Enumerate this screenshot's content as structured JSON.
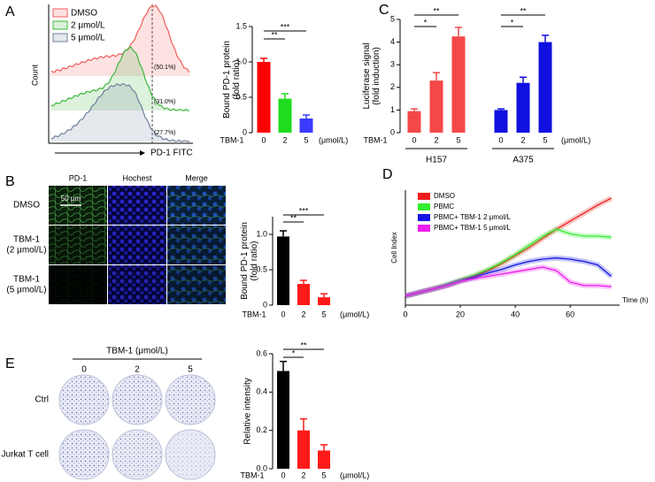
{
  "figure": {
    "panel_labels": [
      "A",
      "B",
      "C",
      "D",
      "E"
    ],
    "microscopy": {
      "columns": [
        "PD-1",
        "Hochest",
        "Merge"
      ],
      "rows": [
        [
          "DMSO"
        ],
        [
          "TBM-1",
          "(2 μmol/L)"
        ],
        [
          "TBM-1",
          "(5 μmol/L)"
        ]
      ],
      "scale_bar": "50 μm"
    },
    "plates": {
      "title": "TBM-1 (μmol/L)",
      "columns": [
        "0",
        "2",
        "5"
      ],
      "rows": [
        "Ctrl",
        "Jurkat T cell"
      ]
    }
  },
  "chart_data": [
    {
      "type": "flow",
      "ylabel": "Count",
      "xlabel": "PD-1  FITC",
      "series": [
        {
          "name": "DMSO",
          "color": "#f25c5c",
          "values": [
            50.1
          ],
          "value_labels": [
            "(50.1%)"
          ]
        },
        {
          "name": "2 μmol/L",
          "color": "#3cb83c",
          "values": [
            31.0
          ],
          "value_labels": [
            "(31.0%)"
          ]
        },
        {
          "name": "5 μmol/L",
          "color": "#6f7f9a",
          "values": [
            27.7
          ],
          "value_labels": [
            "(27.7%)"
          ]
        }
      ]
    },
    {
      "type": "bar",
      "ylabel": [
        "Bound PD-1 protein",
        "(fold ratio)"
      ],
      "xprefix": "TBM-1",
      "xunit": "(μmol/L)",
      "categories": [
        "0",
        "2",
        "5"
      ],
      "values": [
        1.0,
        0.48,
        0.2
      ],
      "errors": [
        0.05,
        0.07,
        0.05
      ],
      "colors": [
        "#ff0000",
        "#1fdc1f",
        "#3b3bff"
      ],
      "ylim": [
        0,
        1.5
      ],
      "yticks": [
        0,
        0.5,
        {
          "value": 1,
          "label": "1.0"
        },
        1.5
      ],
      "significance": [
        "**",
        "***"
      ]
    },
    {
      "type": "grouped-bar",
      "ylabel": [
        "Luciferase signal",
        "(fold induction)"
      ],
      "xprefix": "TBM-1",
      "xunit": "(μmol/L)",
      "categories": [
        "0",
        "2",
        "5"
      ],
      "ylim": [
        0,
        5
      ],
      "yticks": [
        0,
        1,
        2,
        3,
        4,
        5
      ],
      "series": [
        {
          "name": "H157",
          "color": "#f44848",
          "values": [
            0.95,
            2.3,
            4.25
          ],
          "errors": [
            0.1,
            0.35,
            0.4
          ],
          "significance": [
            "*",
            "**"
          ]
        },
        {
          "name": "A375",
          "color": "#1010e0",
          "values": [
            1.0,
            2.2,
            4.0
          ],
          "errors": [
            0.05,
            0.25,
            0.3
          ],
          "significance": [
            "*",
            "**"
          ]
        }
      ]
    },
    {
      "type": "bar",
      "ylabel": [
        "Bound PD-1 protein",
        "(fold ratio)"
      ],
      "xprefix": "TBM-1",
      "xunit": "(μmol/L)",
      "categories": [
        "0",
        "2",
        "5"
      ],
      "values": [
        0.97,
        0.3,
        0.11
      ],
      "errors": [
        0.08,
        0.05,
        0.05
      ],
      "colors": [
        "#000000",
        "#ff1a1a",
        "#ff1a1a"
      ],
      "ylim": [
        0,
        1.25
      ],
      "yticks": [
        0,
        0.5,
        {
          "value": 1,
          "label": "1.0"
        }
      ],
      "significance": [
        "**",
        "***"
      ]
    },
    {
      "type": "line",
      "ylabel": "Cell Index",
      "xlabel": "Time (h)",
      "x": [
        0,
        5,
        10,
        15,
        20,
        25,
        30,
        35,
        40,
        45,
        50,
        55,
        60,
        65,
        70,
        75
      ],
      "xlim": [
        0,
        78
      ],
      "xticks": [
        0,
        20,
        40,
        60
      ],
      "ylim": [
        0,
        1
      ],
      "series": [
        {
          "name": "DMSO",
          "color": "#ee1c1c",
          "values": [
            0.08,
            0.11,
            0.14,
            0.17,
            0.21,
            0.25,
            0.3,
            0.36,
            0.43,
            0.5,
            0.58,
            0.66,
            0.73,
            0.8,
            0.87,
            0.93
          ]
        },
        {
          "name": "PBMC",
          "color": "#33ee33",
          "values": [
            0.08,
            0.11,
            0.14,
            0.18,
            0.22,
            0.26,
            0.31,
            0.37,
            0.44,
            0.52,
            0.6,
            0.66,
            0.62,
            0.6,
            0.6,
            0.59
          ]
        },
        {
          "name": "PBMC+ TBM-1 2 μmol/L",
          "color": "#1515e6",
          "values": [
            0.08,
            0.11,
            0.14,
            0.17,
            0.21,
            0.24,
            0.28,
            0.31,
            0.35,
            0.38,
            0.4,
            0.41,
            0.4,
            0.38,
            0.35,
            0.25
          ]
        },
        {
          "name": "PBMC+ TBM-1 5 μmol/L",
          "color": "#ee1cee",
          "values": [
            0.08,
            0.11,
            0.14,
            0.17,
            0.21,
            0.23,
            0.25,
            0.27,
            0.29,
            0.31,
            0.33,
            0.3,
            0.2,
            0.17,
            0.17,
            0.16
          ]
        }
      ]
    },
    {
      "type": "bar",
      "ylabel": [
        "Relative intensity"
      ],
      "xprefix": "TBM-1",
      "xunit": "(μmol/L)",
      "categories": [
        "0",
        "2",
        "5"
      ],
      "values": [
        0.51,
        0.2,
        0.095
      ],
      "errors": [
        0.05,
        0.06,
        0.03
      ],
      "colors": [
        "#000000",
        "#ff1a1a",
        "#ff1a1a"
      ],
      "ylim": [
        0,
        0.6
      ],
      "yticks": [
        {
          "value": 0,
          "label": "0.0"
        },
        0.2,
        0.4,
        0.6
      ],
      "significance": [
        "*",
        "**"
      ]
    }
  ]
}
